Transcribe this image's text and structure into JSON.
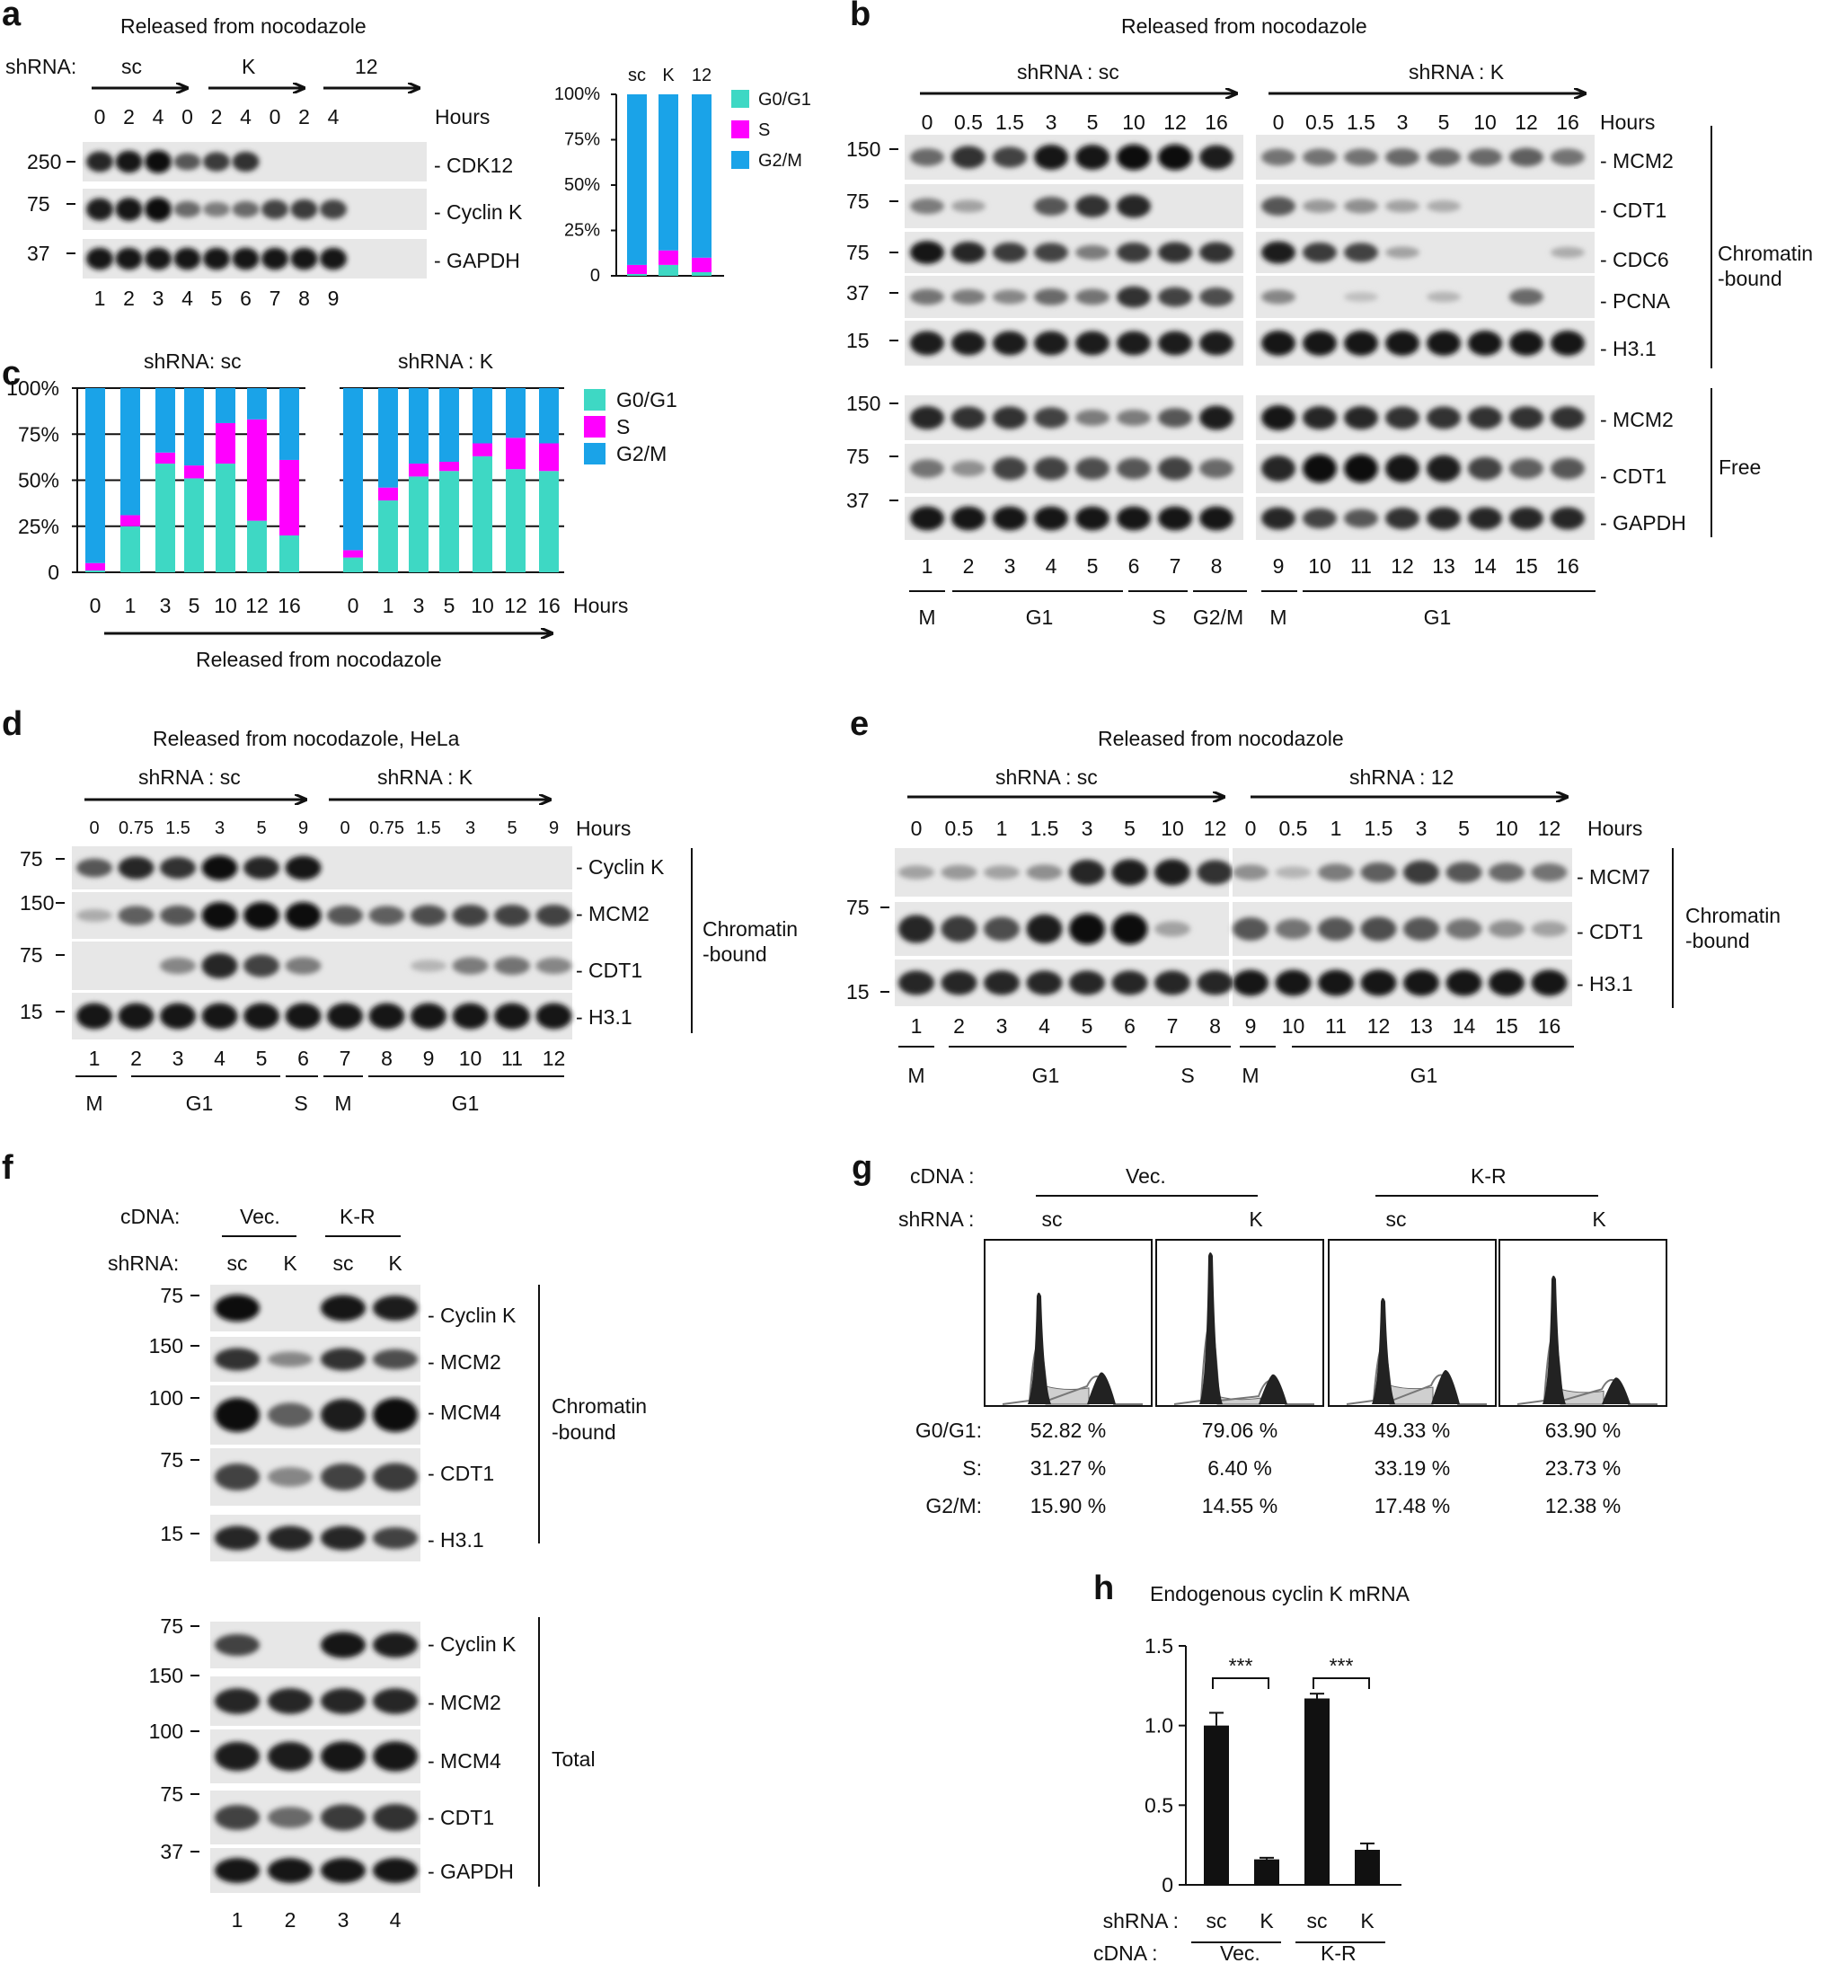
{
  "colors": {
    "g0g1": "#3ed8c4",
    "s": "#ff00ff",
    "g2m": "#1aa3e8"
  },
  "panel_a": {
    "label": "a",
    "title": "Released from nocodazole",
    "shrna_label": "shRNA:",
    "groups": [
      "sc",
      "K",
      "12"
    ],
    "hours_label": "Hours",
    "hours": [
      "0",
      "2",
      "4",
      "0",
      "2",
      "4",
      "0",
      "2",
      "4"
    ],
    "mw": [
      "250",
      "75",
      "37"
    ],
    "proteins": [
      "- CDK12",
      "- Cyclin K",
      "- GAPDH"
    ],
    "lanes": [
      "1",
      "2",
      "3",
      "4",
      "5",
      "6",
      "7",
      "8",
      "9"
    ],
    "cdk12": [
      0.85,
      0.95,
      1.0,
      0.6,
      0.75,
      0.8,
      0,
      0,
      0
    ],
    "cyclink": [
      0.9,
      0.95,
      1.0,
      0.5,
      0.4,
      0.5,
      0.7,
      0.75,
      0.7
    ],
    "gapdh": [
      0.95,
      0.95,
      0.95,
      0.95,
      0.95,
      0.95,
      0.95,
      0.95,
      0.95
    ]
  },
  "panel_a_chart": {
    "type": "bar",
    "stacked": true,
    "categories": [
      "sc",
      "K",
      "12"
    ],
    "yticks": [
      "100%",
      "75%",
      "50%",
      "25%",
      "0"
    ],
    "legend": [
      "G0/G1",
      "S",
      "G2/M"
    ],
    "series": [
      {
        "name": "G0/G1",
        "values": [
          1,
          6,
          2
        ]
      },
      {
        "name": "S",
        "values": [
          5,
          8,
          8
        ]
      },
      {
        "name": "G2/M",
        "values": [
          94,
          86,
          90
        ]
      }
    ]
  },
  "panel_b": {
    "label": "b",
    "title": "Released from nocodazole",
    "group_sc": "shRNA : sc",
    "group_k": "shRNA : K",
    "hours_label": "Hours",
    "hours_sc": [
      "0",
      "0.5",
      "1.5",
      "3",
      "5",
      "10",
      "12",
      "16"
    ],
    "hours_k": [
      "0",
      "0.5",
      "1.5",
      "3",
      "5",
      "10",
      "12",
      "16"
    ],
    "mw_top": [
      "150",
      "75",
      "75",
      "37",
      "15"
    ],
    "mw_bottom": [
      "150",
      "75",
      "37"
    ],
    "proteins_top": [
      "- MCM2",
      "- CDT1",
      "- CDC6",
      "- PCNA",
      "- H3.1"
    ],
    "proteins_bottom": [
      "- MCM2",
      "- CDT1",
      "- GAPDH"
    ],
    "bracket_top": [
      "Chromatin",
      "-bound"
    ],
    "bracket_bottom": "Free",
    "lanes": [
      "1",
      "2",
      "3",
      "4",
      "5",
      "6",
      "7",
      "8",
      "9",
      "10",
      "11",
      "12",
      "13",
      "14",
      "15",
      "16"
    ],
    "phases": [
      "M",
      "G1",
      "S",
      "G2/M",
      "M",
      "G1"
    ],
    "blots_top": [
      [
        0.5,
        0.8,
        0.7,
        0.95,
        0.95,
        1,
        1,
        0.9,
        0.45,
        0.45,
        0.45,
        0.5,
        0.5,
        0.5,
        0.55,
        0.45
      ],
      [
        0.4,
        0.2,
        0,
        0.6,
        0.8,
        0.85,
        0,
        0,
        0.6,
        0.25,
        0.3,
        0.2,
        0.15,
        0,
        0,
        0
      ],
      [
        0.95,
        0.85,
        0.75,
        0.7,
        0.4,
        0.75,
        0.8,
        0.8,
        0.9,
        0.75,
        0.7,
        0.2,
        0,
        0,
        0,
        0.15
      ],
      [
        0.45,
        0.4,
        0.35,
        0.5,
        0.45,
        0.8,
        0.7,
        0.65,
        0.35,
        0,
        0.05,
        0,
        0.1,
        0,
        0.5,
        0
      ],
      [
        0.9,
        0.9,
        0.9,
        0.9,
        0.9,
        0.9,
        0.9,
        0.9,
        0.95,
        0.95,
        0.95,
        0.95,
        0.95,
        0.95,
        0.95,
        0.95
      ]
    ],
    "blots_bottom": [
      [
        0.85,
        0.8,
        0.8,
        0.7,
        0.4,
        0.4,
        0.6,
        0.9,
        0.95,
        0.85,
        0.85,
        0.8,
        0.8,
        0.8,
        0.8,
        0.8
      ],
      [
        0.45,
        0.3,
        0.7,
        0.7,
        0.65,
        0.6,
        0.7,
        0.5,
        0.85,
        1,
        1,
        0.95,
        0.9,
        0.7,
        0.55,
        0.6
      ],
      [
        0.95,
        0.95,
        0.95,
        0.95,
        0.95,
        0.95,
        0.95,
        0.95,
        0.85,
        0.7,
        0.6,
        0.8,
        0.85,
        0.85,
        0.85,
        0.85
      ]
    ]
  },
  "panel_c": {
    "label": "c",
    "group_sc": "shRNA: sc",
    "group_k": "shRNA : K",
    "hours_label": "Hours",
    "released": "Released from nocodazole",
    "yticks": [
      "100%",
      "75%",
      "50%",
      "25%",
      "0"
    ],
    "legend": [
      "G0/G1",
      "S",
      "G2/M"
    ]
  },
  "chart_data": {
    "type": "bar",
    "stacked": true,
    "categories": [
      "0",
      "1",
      "3",
      "5",
      "10",
      "12",
      "16",
      "0",
      "1",
      "3",
      "5",
      "10",
      "12",
      "16"
    ],
    "groups": [
      "shRNA: sc",
      "shRNA : K"
    ],
    "ylim": [
      0,
      100
    ],
    "xlabel": "Hours",
    "legend": [
      "G0/G1",
      "S",
      "G2/M"
    ],
    "series": [
      {
        "name": "G0/G1",
        "values": [
          1,
          25,
          59,
          51,
          59,
          28,
          20,
          8,
          39,
          52,
          55,
          63,
          56,
          55
        ]
      },
      {
        "name": "S",
        "values": [
          4,
          6,
          6,
          7,
          22,
          55,
          41,
          4,
          7,
          7,
          5,
          7,
          17,
          15
        ]
      },
      {
        "name": "G2/M",
        "values": [
          95,
          69,
          35,
          42,
          19,
          17,
          39,
          88,
          54,
          41,
          40,
          30,
          27,
          30
        ]
      }
    ]
  },
  "panel_d": {
    "label": "d",
    "title": "Released from nocodazole, HeLa",
    "group_sc": "shRNA : sc",
    "group_k": "shRNA : K",
    "hours_label": "Hours",
    "hours": [
      "0",
      "0.75",
      "1.5",
      "3",
      "5",
      "9",
      "0",
      "0.75",
      "1.5",
      "3",
      "5",
      "9"
    ],
    "mw": [
      "75",
      "150",
      "75",
      "15"
    ],
    "proteins": [
      "- Cyclin K",
      "- MCM2",
      "- CDT1",
      "- H3.1"
    ],
    "bracket": [
      "Chromatin",
      "-bound"
    ],
    "lanes": [
      "1",
      "2",
      "3",
      "4",
      "5",
      "6",
      "7",
      "8",
      "9",
      "10",
      "11",
      "12"
    ],
    "phases": [
      "M",
      "G1",
      "S",
      "M",
      "G1"
    ],
    "blots": [
      [
        0.6,
        0.85,
        0.8,
        1,
        0.85,
        0.95,
        0,
        0,
        0,
        0,
        0,
        0
      ],
      [
        0.15,
        0.55,
        0.6,
        1,
        1,
        1,
        0.6,
        0.55,
        0.65,
        0.7,
        0.7,
        0.7
      ],
      [
        0,
        0,
        0.35,
        0.85,
        0.7,
        0.4,
        0,
        0,
        0.1,
        0.4,
        0.45,
        0.35
      ],
      [
        0.95,
        0.95,
        0.95,
        0.95,
        0.95,
        0.95,
        0.95,
        0.95,
        0.95,
        0.95,
        0.95,
        0.95
      ]
    ]
  },
  "panel_e": {
    "label": "e",
    "title": "Released from nocodazole",
    "group_sc": "shRNA : sc",
    "group_12": "shRNA : 12",
    "hours_label": "Hours",
    "hours_sc": [
      "0",
      "0.5",
      "1",
      "1.5",
      "3",
      "5",
      "10",
      "12"
    ],
    "hours_12": [
      "0",
      "0.5",
      "1",
      "1.5",
      "3",
      "5",
      "10",
      "12"
    ],
    "mw": [
      "75",
      "15"
    ],
    "proteins": [
      "- MCM7",
      "- CDT1",
      "- H3.1"
    ],
    "bracket": [
      "Chromatin",
      "-bound"
    ],
    "lanes": [
      "1",
      "2",
      "3",
      "4",
      "5",
      "6",
      "7",
      "8",
      "9",
      "10",
      "11",
      "12",
      "13",
      "14",
      "15",
      "16"
    ],
    "phases": [
      "M",
      "G1",
      "S",
      "M",
      "G1"
    ],
    "blots": [
      [
        0.2,
        0.25,
        0.2,
        0.3,
        0.85,
        0.9,
        0.9,
        0.8,
        0.3,
        0.1,
        0.4,
        0.55,
        0.75,
        0.6,
        0.5,
        0.45
      ],
      [
        0.85,
        0.75,
        0.65,
        0.9,
        1,
        1,
        0.2,
        0,
        0.6,
        0.45,
        0.6,
        0.65,
        0.6,
        0.45,
        0.3,
        0.2
      ],
      [
        0.85,
        0.85,
        0.85,
        0.85,
        0.85,
        0.85,
        0.85,
        0.85,
        0.95,
        0.95,
        0.95,
        0.95,
        0.95,
        0.95,
        0.95,
        0.95
      ]
    ]
  },
  "panel_f": {
    "label": "f",
    "cdna_label": "cDNA:",
    "shrna_label": "shRNA:",
    "cdna_groups": [
      "Vec.",
      "K-R"
    ],
    "shrna": [
      "sc",
      "K",
      "sc",
      "K"
    ],
    "mw_top": [
      "75",
      "150",
      "100",
      "75",
      "15"
    ],
    "mw_bottom": [
      "75",
      "150",
      "100",
      "75",
      "37"
    ],
    "proteins_top": [
      "- Cyclin K",
      "- MCM2",
      "- MCM4",
      "- CDT1",
      "- H3.1"
    ],
    "proteins_bottom": [
      "- Cyclin K",
      "- MCM2",
      "- MCM4",
      "- CDT1",
      "- GAPDH"
    ],
    "bracket_top": [
      "Chromatin",
      "-bound"
    ],
    "bracket_bottom": "Total",
    "lanes": [
      "1",
      "2",
      "3",
      "4"
    ],
    "blots_top": [
      [
        1,
        0,
        0.95,
        0.9
      ],
      [
        0.8,
        0.35,
        0.8,
        0.65
      ],
      [
        1,
        0.55,
        0.9,
        1
      ],
      [
        0.7,
        0.35,
        0.7,
        0.75
      ],
      [
        0.85,
        0.85,
        0.85,
        0.7
      ]
    ],
    "blots_bottom": [
      [
        0.7,
        0,
        0.95,
        0.9
      ],
      [
        0.85,
        0.85,
        0.85,
        0.85
      ],
      [
        0.9,
        0.9,
        0.95,
        0.95
      ],
      [
        0.7,
        0.5,
        0.75,
        0.8
      ],
      [
        0.95,
        0.95,
        0.95,
        0.95
      ]
    ]
  },
  "panel_g": {
    "label": "g",
    "cdna_label": "cDNA :",
    "shrna_label": "shRNA :",
    "cdna_groups": [
      "Vec.",
      "K-R"
    ],
    "shrna": [
      "sc",
      "K",
      "sc",
      "K"
    ],
    "row_labels": [
      "G0/G1:",
      "S:",
      "G2/M:"
    ],
    "values": [
      [
        "52.82 %",
        "79.06 %",
        "49.33 %",
        "63.90 %"
      ],
      [
        "31.27 %",
        "6.40 %",
        "33.19 %",
        "23.73 %"
      ],
      [
        "15.90 %",
        "14.55 %",
        "17.48 %",
        "12.38 %"
      ]
    ],
    "g0g1": [
      52.82,
      79.06,
      49.33,
      63.9
    ],
    "s": [
      31.27,
      6.4,
      33.19,
      23.73
    ],
    "g2m": [
      15.9,
      14.55,
      17.48,
      12.38
    ]
  },
  "panel_h": {
    "label": "h",
    "title": "Endogenous cyclin K mRNA",
    "yticks": [
      "1.5",
      "1.0",
      "0.5",
      "0"
    ],
    "ylim": [
      0,
      1.5
    ],
    "shrna_label": "shRNA :",
    "cdna_label": "cDNA :",
    "shrna": [
      "sc",
      "K",
      "sc",
      "K"
    ],
    "cdna": [
      "Vec.",
      "K-R"
    ],
    "sig": [
      "***",
      "***"
    ],
    "values": [
      1.0,
      0.16,
      1.17,
      0.22
    ],
    "errors": [
      0.08,
      0.01,
      0.03,
      0.04
    ]
  }
}
